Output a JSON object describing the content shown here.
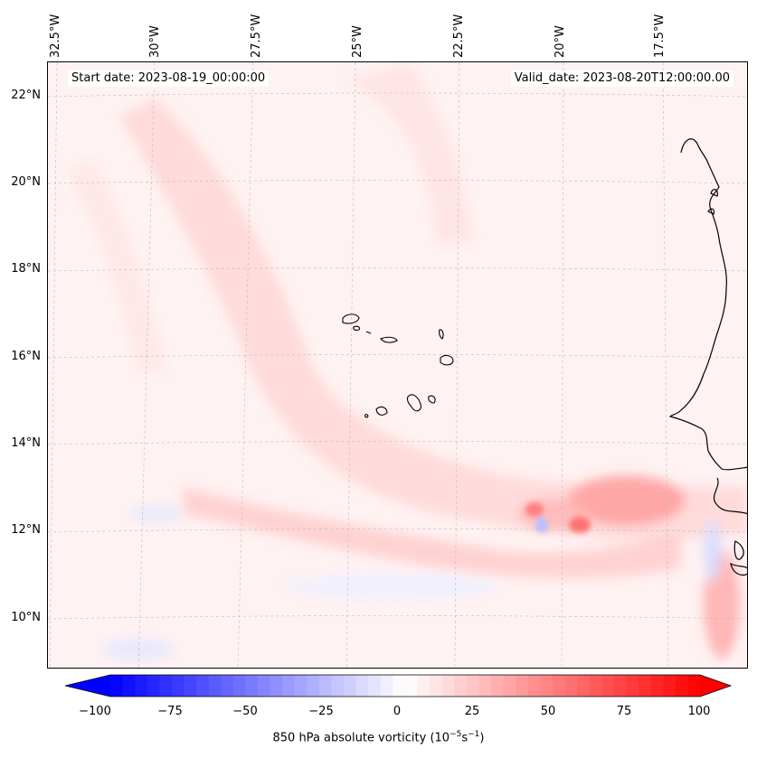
{
  "header": {
    "start_date": "Start date: 2023-08-19_00:00:00",
    "valid_date": "Valid_date: 2023-08-20T12:00:00.00"
  },
  "longitude_labels": [
    "32.5°W",
    "30°W",
    "27.5°W",
    "25°W",
    "22.5°W",
    "20°W",
    "17.5°W"
  ],
  "latitude_labels": [
    "22°N",
    "20°N",
    "18°N",
    "16°N",
    "14°N",
    "12°N",
    "10°N"
  ],
  "colorbar": {
    "label_prefix": "850 hPa absolute vorticity (10",
    "label_exp1": "−5",
    "label_mid": "s",
    "label_exp2": "−1",
    "label_suffix": ")",
    "ticks": [
      "−100",
      "−75",
      "−50",
      "−25",
      "0",
      "25",
      "50",
      "75",
      "100"
    ],
    "min": -100,
    "max": 100,
    "low_color": "#0000ff",
    "high_color": "#ff0000"
  },
  "map": {
    "field": "850 hPa absolute vorticity",
    "extent_lon": [
      -33,
      -15.5
    ],
    "extent_lat": [
      8.8,
      22.8
    ],
    "coastline_color": "#000000",
    "gridline_color": "#bbbbbb"
  }
}
